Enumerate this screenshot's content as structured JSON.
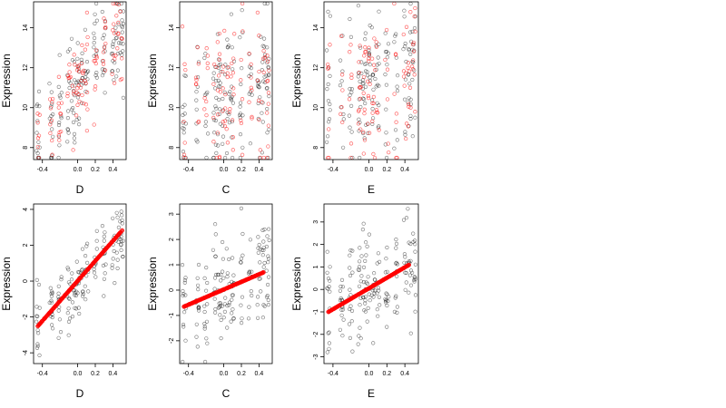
{
  "colors": {
    "background": "#ffffff",
    "observed": "#000000",
    "fitted": "#ff0000"
  },
  "chart_data": [
    {
      "id": "top-D",
      "type": "scatter",
      "xlabel": "D",
      "ylabel": "Expression",
      "xlim": [
        -0.5,
        0.55
      ],
      "ylim": [
        7.4,
        15.3
      ],
      "xticks": [
        -0.4,
        0.0,
        0.2,
        0.4
      ],
      "xtick_labels": [
        "-0.4",
        "0.0",
        "0.2",
        "0.4"
      ],
      "yticks": [
        8,
        10,
        12,
        14
      ],
      "ytick_labels": [
        "8",
        "10",
        "12",
        "14"
      ],
      "observed_trend": [
        [
          -0.45,
          8.6
        ],
        [
          0.45,
          13.4
        ]
      ],
      "observed_spread": 1.3,
      "fitted_trend": [
        [
          -0.45,
          8.6
        ],
        [
          0.45,
          13.4
        ]
      ],
      "fitted_spread": 1.1,
      "fitted_style": "circles"
    },
    {
      "id": "top-C",
      "type": "scatter",
      "xlabel": "C",
      "ylabel": "Expression",
      "xlim": [
        -0.5,
        0.55
      ],
      "ylim": [
        7.4,
        15.3
      ],
      "xticks": [
        -0.4,
        0.0,
        0.2,
        0.4
      ],
      "xtick_labels": [
        "-0.4",
        "0.0",
        "0.2",
        "0.4"
      ],
      "yticks": [
        8,
        10,
        12,
        14
      ],
      "ytick_labels": [
        "8",
        "10",
        "12",
        "14"
      ],
      "observed_trend": [
        [
          -0.45,
          10.0
        ],
        [
          0.45,
          11.4
        ]
      ],
      "observed_spread": 1.9,
      "fitted_trend": [
        [
          -0.45,
          10.2
        ],
        [
          0.45,
          11.0
        ]
      ],
      "fitted_spread": 1.9,
      "fitted_style": "circles"
    },
    {
      "id": "top-E",
      "type": "scatter",
      "xlabel": "E",
      "ylabel": "Expression",
      "xlim": [
        -0.5,
        0.55
      ],
      "ylim": [
        7.4,
        15.3
      ],
      "xticks": [
        -0.4,
        0.0,
        0.2,
        0.4
      ],
      "xtick_labels": [
        "-0.4",
        "0.0",
        "0.2",
        "0.4"
      ],
      "yticks": [
        8,
        10,
        12,
        14
      ],
      "ytick_labels": [
        "8",
        "10",
        "12",
        "14"
      ],
      "observed_trend": [
        [
          -0.45,
          10.2
        ],
        [
          0.45,
          11.8
        ]
      ],
      "observed_spread": 1.8,
      "fitted_trend": [
        [
          -0.45,
          10.2
        ],
        [
          0.45,
          11.8
        ]
      ],
      "fitted_spread": 1.8,
      "fitted_style": "circles"
    },
    {
      "id": "bottom-D",
      "type": "scatter",
      "xlabel": "D",
      "ylabel": "Expression",
      "xlim": [
        -0.5,
        0.55
      ],
      "ylim": [
        -4.6,
        4.3
      ],
      "xticks": [
        -0.4,
        0.0,
        0.2,
        0.4
      ],
      "xtick_labels": [
        "-0.4",
        "0.0",
        "0.2",
        "0.4"
      ],
      "yticks": [
        -4,
        -2,
        0,
        2,
        4
      ],
      "ytick_labels": [
        "-4",
        "-2",
        "0",
        "2",
        "4"
      ],
      "observed_trend": [
        [
          -0.45,
          -2.5
        ],
        [
          0.5,
          2.8
        ]
      ],
      "observed_spread": 1.0,
      "fitted_trend": [
        [
          -0.45,
          -2.5
        ],
        [
          0.5,
          2.8
        ]
      ],
      "fitted_spread": 0.0,
      "fitted_style": "line"
    },
    {
      "id": "bottom-C",
      "type": "scatter",
      "xlabel": "C",
      "ylabel": "Expression",
      "xlim": [
        -0.5,
        0.55
      ],
      "ylim": [
        -2.9,
        3.4
      ],
      "xticks": [
        -0.4,
        0.0,
        0.2,
        0.4
      ],
      "xtick_labels": [
        "-0.4",
        "0.0",
        "0.2",
        "0.4"
      ],
      "yticks": [
        -2,
        -1,
        0,
        1,
        2,
        3
      ],
      "ytick_labels": [
        "-2",
        "-1",
        "0",
        "1",
        "2",
        "3"
      ],
      "observed_trend": [
        [
          -0.45,
          -0.65
        ],
        [
          0.45,
          0.7
        ]
      ],
      "observed_spread": 1.0,
      "fitted_trend": [
        [
          -0.45,
          -0.65
        ],
        [
          0.45,
          0.7
        ]
      ],
      "fitted_spread": 0.0,
      "fitted_style": "line"
    },
    {
      "id": "bottom-E",
      "type": "scatter",
      "xlabel": "E",
      "ylabel": "Expression",
      "xlim": [
        -0.5,
        0.55
      ],
      "ylim": [
        -3.3,
        3.8
      ],
      "xticks": [
        -0.4,
        0.0,
        0.2,
        0.4
      ],
      "xtick_labels": [
        "-0.4",
        "0.0",
        "0.2",
        "0.4"
      ],
      "yticks": [
        -3,
        -2,
        -1,
        0,
        1,
        2,
        3
      ],
      "ytick_labels": [
        "-3",
        "-2",
        "-1",
        "0",
        "1",
        "2",
        "3"
      ],
      "observed_trend": [
        [
          -0.45,
          -1.0
        ],
        [
          0.45,
          1.1
        ]
      ],
      "observed_spread": 1.1,
      "fitted_trend": [
        [
          -0.45,
          -1.0
        ],
        [
          0.45,
          1.1
        ]
      ],
      "fitted_spread": 0.0,
      "fitted_style": "line"
    }
  ]
}
